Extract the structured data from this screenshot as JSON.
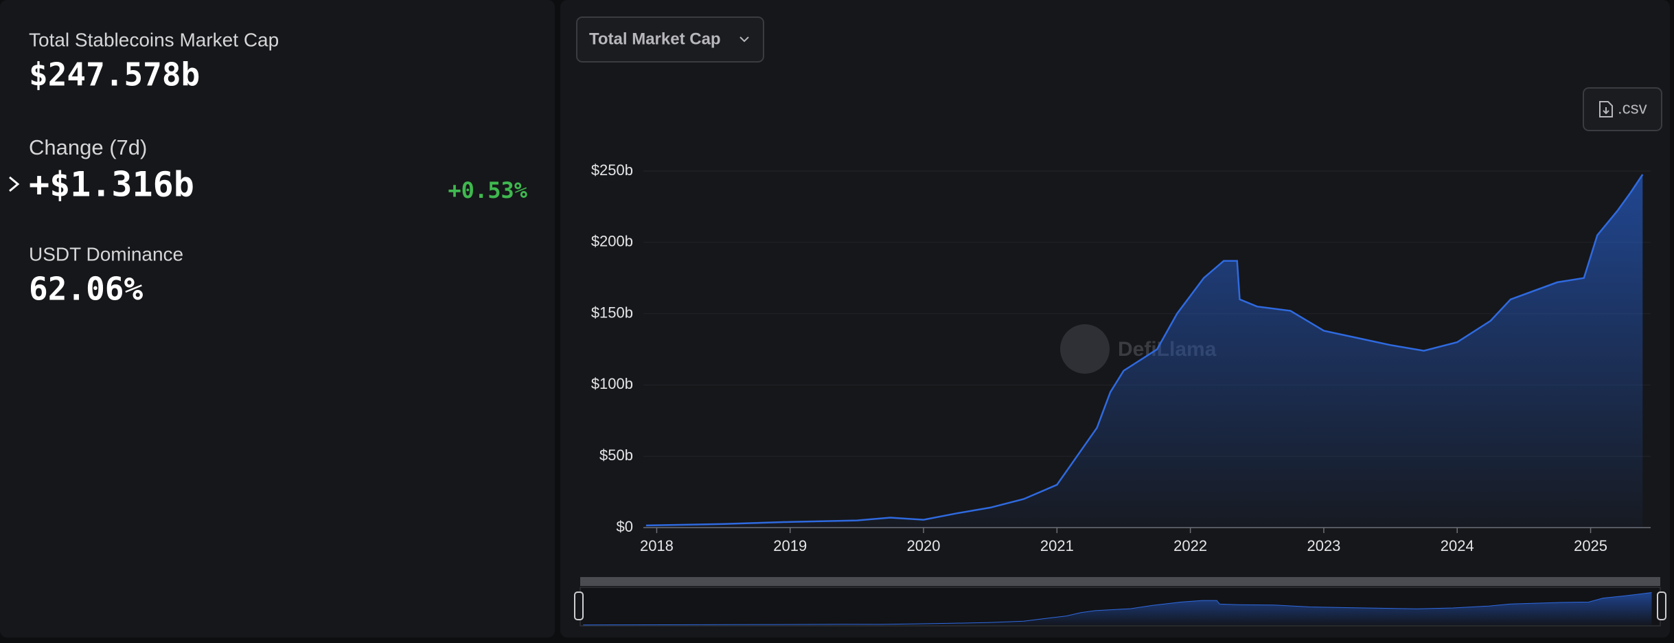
{
  "stats": [
    {
      "label": "Total Stablecoins Market Cap",
      "value": "$247.578b"
    },
    {
      "label": "Change (7d)",
      "value": "+$1.316b",
      "change": "+0.53%"
    },
    {
      "label": "USDT Dominance",
      "value": "62.06%"
    }
  ],
  "dropdown": "Total Market Cap",
  "csv_button": ".csv",
  "watermark": "DefiLlama",
  "chart_data": {
    "type": "area",
    "x": [
      2017.92,
      2018.5,
      2019.0,
      2019.5,
      2019.75,
      2020.0,
      2020.25,
      2020.5,
      2020.75,
      2021.0,
      2021.15,
      2021.3,
      2021.4,
      2021.5,
      2021.75,
      2021.9,
      2022.1,
      2022.25,
      2022.35,
      2022.37,
      2022.5,
      2022.75,
      2023.0,
      2023.25,
      2023.5,
      2023.75,
      2024.0,
      2024.25,
      2024.4,
      2024.75,
      2024.95,
      2025.05,
      2025.2,
      2025.3,
      2025.39
    ],
    "values": [
      1.5,
      2.5,
      4,
      5,
      7,
      5.5,
      10,
      14,
      20,
      30,
      50,
      70,
      95,
      110,
      125,
      150,
      175,
      187,
      187,
      160,
      155,
      152,
      138,
      133,
      128,
      124,
      130,
      145,
      160,
      172,
      175,
      205,
      222,
      235,
      247.578
    ],
    "color": "#2f6ae0",
    "xlim": [
      2017.9,
      2025.45
    ],
    "xticks": [
      2018,
      2019,
      2020,
      2021,
      2022,
      2023,
      2024,
      2025
    ],
    "ylim": [
      0,
      250
    ],
    "yticks": [
      {
        "value": 0,
        "label": "$0"
      },
      {
        "value": 50,
        "label": "$50b"
      },
      {
        "value": 100,
        "label": "$100b"
      },
      {
        "value": 150,
        "label": "$150b"
      },
      {
        "value": 200,
        "label": "$200b"
      },
      {
        "value": 250,
        "label": "$250b"
      }
    ],
    "grid": true
  }
}
